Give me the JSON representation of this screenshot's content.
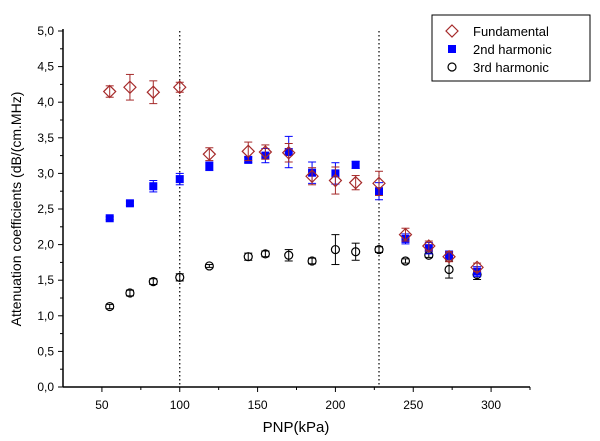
{
  "chart_data": {
    "type": "scatter",
    "title": "",
    "xlabel": "PNP(kPa)",
    "ylabel": "Attenuation coefficients (dB/(cm.MHz)",
    "xlim": [
      25,
      325
    ],
    "ylim": [
      0,
      5
    ],
    "xticks": [
      50,
      100,
      150,
      200,
      250,
      300
    ],
    "xtick_labels": [
      "50",
      "100",
      "150",
      "200",
      "250",
      "300"
    ],
    "yticks": [
      0,
      0.5,
      1,
      1.5,
      2,
      2.5,
      3,
      3.5,
      4,
      4.5,
      5
    ],
    "ytick_labels": [
      "0,0",
      "0,5",
      "1,0",
      "1,5",
      "2,0",
      "2,5",
      "3,0",
      "3,5",
      "4,0",
      "4,5",
      "5,0"
    ],
    "vlines": [
      100,
      228
    ],
    "legend_position": "top-right",
    "x": [
      55,
      68,
      83,
      100,
      119,
      144,
      155,
      170,
      185,
      200,
      213,
      228,
      245,
      260,
      273,
      291
    ],
    "series": [
      {
        "name": "Fundamental",
        "color": "#a52a2a",
        "marker": "diamond-open",
        "values": [
          4.15,
          4.21,
          4.14,
          4.21,
          3.27,
          3.31,
          3.3,
          3.29,
          2.96,
          2.9,
          2.87,
          2.86,
          2.14,
          1.98,
          1.83,
          1.68
        ],
        "errors": [
          0.08,
          0.18,
          0.16,
          0.07,
          0.09,
          0.13,
          0.1,
          0.13,
          0.12,
          0.19,
          0.1,
          0.17,
          0.09,
          0.07,
          0.07,
          0.06
        ]
      },
      {
        "name": "2nd harmonic",
        "color": "#0000ff",
        "marker": "square-filled",
        "values": [
          2.37,
          2.58,
          2.82,
          2.92,
          3.1,
          3.19,
          3.25,
          3.3,
          3.01,
          3.0,
          3.12,
          2.75,
          2.08,
          1.95,
          1.85,
          1.62
        ],
        "errors": [
          0.02,
          0.03,
          0.08,
          0.08,
          0.06,
          0.04,
          0.1,
          0.22,
          0.15,
          0.15,
          0.05,
          0.12,
          0.07,
          0.08,
          0.06,
          0.07
        ]
      },
      {
        "name": "3rd harmonic",
        "color": "#000000",
        "marker": "circle-open",
        "values": [
          1.13,
          1.32,
          1.48,
          1.54,
          1.7,
          1.83,
          1.87,
          1.85,
          1.77,
          1.93,
          1.9,
          1.93,
          1.77,
          1.85,
          1.65,
          1.58
        ],
        "errors": [
          0.03,
          0.04,
          0.04,
          0.05,
          0.02,
          0.05,
          0.04,
          0.08,
          0.04,
          0.21,
          0.12,
          0.04,
          0.03,
          0.03,
          0.12,
          0.07
        ]
      }
    ]
  }
}
